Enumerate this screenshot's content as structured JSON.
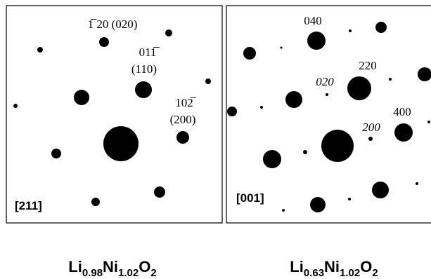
{
  "panels": [
    {
      "zone_axis": "[211]",
      "spot_labels": [
        "1̅ 20 (020)",
        "011̅",
        "(110)",
        "102̅",
        "(200)"
      ],
      "caption": [
        "Li",
        "0.98",
        "Ni",
        "1.02",
        "O",
        "2"
      ]
    },
    {
      "zone_axis": "[001]",
      "spot_labels": [
        "040",
        "220",
        "020",
        "400",
        "200"
      ],
      "caption": [
        "Li",
        "0.63",
        "Ni",
        "1.02",
        "O",
        "2"
      ]
    }
  ]
}
